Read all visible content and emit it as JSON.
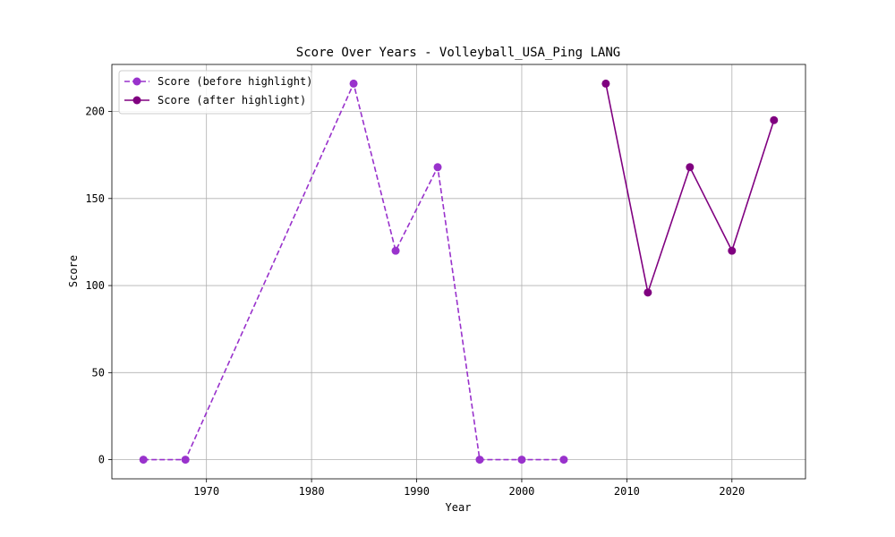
{
  "chart_data": {
    "type": "line",
    "title": "Score Over Years - Volleyball_USA_Ping LANG",
    "xlabel": "Year",
    "ylabel": "Score",
    "xlim": [
      1961,
      2027
    ],
    "ylim": [
      -11,
      227
    ],
    "xticks": [
      1970,
      1980,
      1990,
      2000,
      2010,
      2020
    ],
    "yticks": [
      0,
      50,
      100,
      150,
      200
    ],
    "grid": true,
    "legend_position": "upper-left",
    "series": [
      {
        "name": "Score (before highlight)",
        "color": "#9932CC",
        "line_style": "dashed",
        "marker": "circle",
        "x": [
          1964,
          1968,
          1984,
          1988,
          1992,
          1996,
          2000,
          2004
        ],
        "y": [
          0,
          0,
          216,
          120,
          168,
          0,
          0,
          0
        ]
      },
      {
        "name": "Score (after highlight)",
        "color": "#800080",
        "line_style": "solid",
        "marker": "circle",
        "x": [
          2008,
          2012,
          2016,
          2020,
          2024
        ],
        "y": [
          216,
          96,
          168,
          120,
          195
        ]
      }
    ]
  }
}
